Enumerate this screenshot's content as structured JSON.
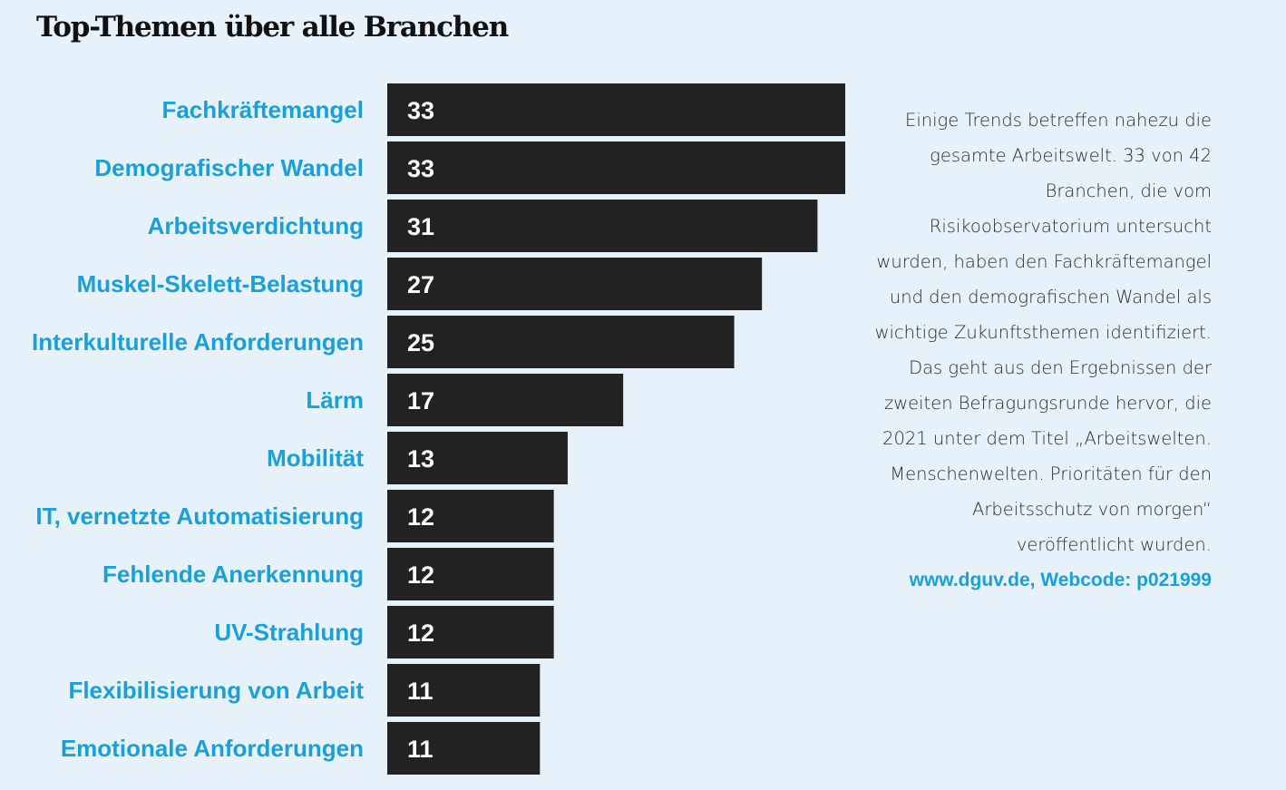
{
  "title": "Top-Themen über alle Branchen",
  "chart_data": {
    "type": "bar",
    "orientation": "horizontal",
    "categories": [
      "Fachkräftemangel",
      "Demografischer Wandel",
      "Arbeitsverdichtung",
      "Muskel-Skelett-Belastung",
      "Interkulturelle Anforderungen",
      "Lärm",
      "Mobilität",
      "IT, vernetzte Automatisierung",
      "Fehlende Anerkennung",
      "UV-Strahlung",
      "Flexibilisierung von Arbeit",
      "Emotionale Anforderungen"
    ],
    "values": [
      33,
      33,
      31,
      27,
      25,
      17,
      13,
      12,
      12,
      12,
      11,
      11
    ],
    "data_labels": true,
    "xlim": [
      0,
      33
    ],
    "grid": false,
    "colors": {
      "bar": "#222222",
      "label": "#1aa0d8",
      "value": "#ffffff"
    }
  },
  "sidebar": {
    "text": "Einige Trends betreffen nahezu die gesamte Arbeitswelt. 33 von 42 Branchen, die vom Risikoobservatorium untersucht wurden, haben den Fachkräftemangel und den demografischen Wandel als wichtige Zukunftsthemen identifiziert. Das geht aus den Ergebnissen der zweiten Befragungsrunde hervor, die 2021 unter dem Titel „Arbeitswelten. Menschenwelten. Prioritäten für den Arbeitsschutz von morgen“ veröffentlicht wurden.",
    "link": "www.dguv.de, Webcode: p021999"
  }
}
